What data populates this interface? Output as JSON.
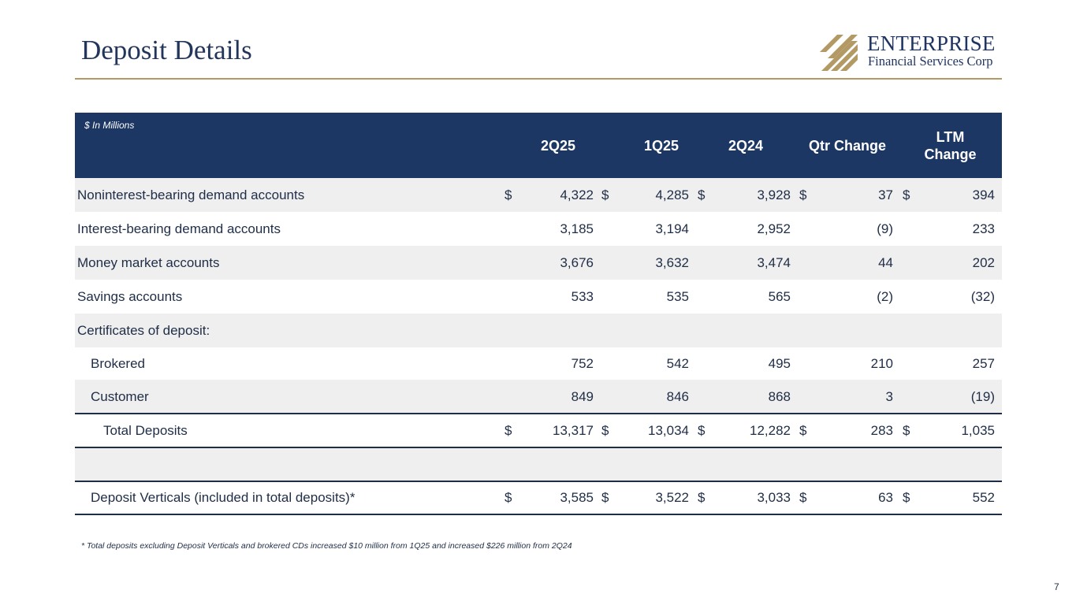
{
  "page": {
    "title": "Deposit Details",
    "page_number": "7"
  },
  "logo": {
    "name": "ENTERPRISE",
    "subtitle": "Financial Services Corp"
  },
  "table": {
    "unit_note": "$ In Millions",
    "headers": {
      "c1": "2Q25",
      "c2": "1Q25",
      "c3": "2Q24",
      "c4": "Qtr Change",
      "c5": "LTM Change"
    },
    "rows": [
      {
        "label": "Noninterest-bearing demand accounts",
        "c1": "4,322",
        "c2": "4,285",
        "c3": "3,928",
        "c4": "37",
        "c5": "394",
        "dollar": "$"
      },
      {
        "label": "Interest-bearing demand accounts",
        "c1": "3,185",
        "c2": "3,194",
        "c3": "2,952",
        "c4": "(9)",
        "c5": "233"
      },
      {
        "label": "Money market accounts",
        "c1": "3,676",
        "c2": "3,632",
        "c3": "3,474",
        "c4": "44",
        "c5": "202"
      },
      {
        "label": "Savings accounts",
        "c1": "533",
        "c2": "535",
        "c3": "565",
        "c4": "(2)",
        "c5": "(32)"
      },
      {
        "label": "Certificates of deposit:"
      },
      {
        "label": "Brokered",
        "c1": "752",
        "c2": "542",
        "c3": "495",
        "c4": "210",
        "c5": "257"
      },
      {
        "label": "Customer",
        "c1": "849",
        "c2": "846",
        "c3": "868",
        "c4": "3",
        "c5": "(19)"
      },
      {
        "label": "Total Deposits",
        "c1": "13,317",
        "c2": "13,034",
        "c3": "12,282",
        "c4": "283",
        "c5": "1,035",
        "dollar": "$"
      },
      {
        "label": ""
      },
      {
        "label": "Deposit Verticals (included in total deposits)*",
        "c1": "3,585",
        "c2": "3,522",
        "c3": "3,033",
        "c4": "63",
        "c5": "552",
        "dollar": "$"
      }
    ]
  },
  "footnote": "* Total deposits excluding Deposit Verticals and brokered CDs increased $10 million from 1Q25 and increased $226 million from 2Q24",
  "colors": {
    "navy": "#1c3763",
    "gold": "#b39a64",
    "shade": "#efefef"
  }
}
